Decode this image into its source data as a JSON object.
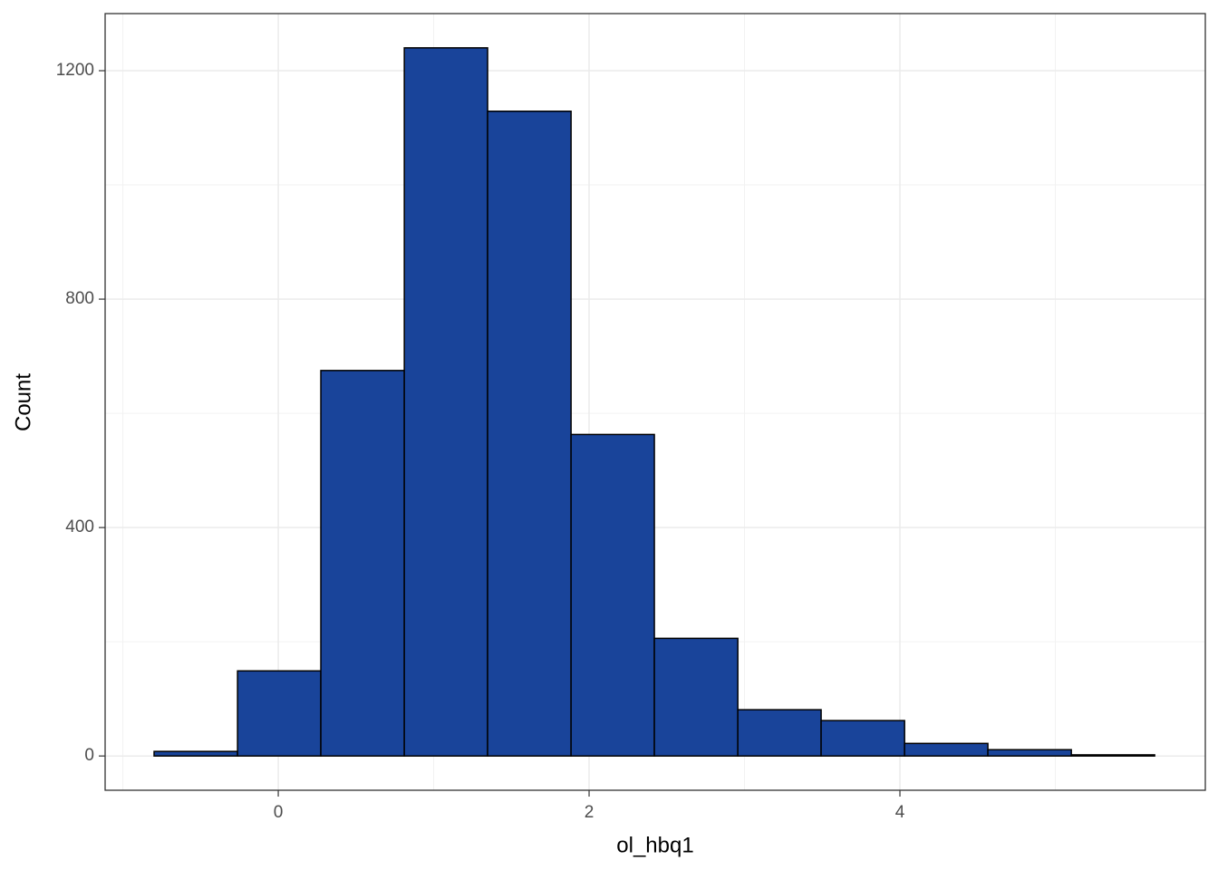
{
  "chart_data": {
    "type": "histogram",
    "x_label": "ol_hbq1",
    "y_label": "Count",
    "bins": [
      -0.799,
      -0.262,
      0.274,
      0.811,
      1.347,
      1.884,
      2.42,
      2.957,
      3.493,
      4.03,
      4.566,
      5.103,
      5.639
    ],
    "values": [
      8,
      149,
      675,
      1240,
      1129,
      563,
      206,
      81,
      62,
      22,
      11,
      2
    ],
    "color": "#19449a",
    "edge_color": "#000000",
    "xlim": [
      -1.114,
      5.965
    ],
    "ylim": [
      -60,
      1300
    ],
    "xticks": [
      0,
      2,
      4
    ],
    "yticks": [
      0,
      400,
      800,
      1200
    ],
    "x_minor_grid": [
      -1,
      1,
      3,
      5
    ],
    "y_minor_grid": [
      200,
      600,
      1000
    ],
    "grid": true
  }
}
